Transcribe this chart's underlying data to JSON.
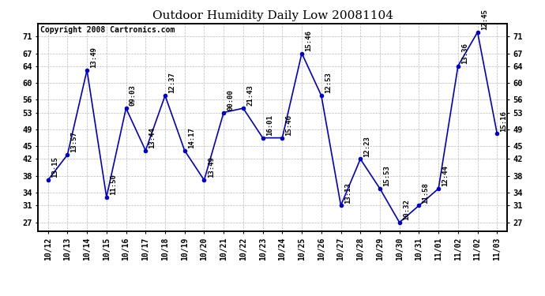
{
  "title": "Outdoor Humidity Daily Low 20081104",
  "copyright": "Copyright 2008 Cartronics.com",
  "x_labels": [
    "10/12",
    "10/13",
    "10/14",
    "10/15",
    "10/16",
    "10/17",
    "10/18",
    "10/19",
    "10/20",
    "10/21",
    "10/22",
    "10/23",
    "10/24",
    "10/25",
    "10/26",
    "10/27",
    "10/28",
    "10/29",
    "10/30",
    "10/31",
    "11/01",
    "11/02",
    "11/02",
    "11/03"
  ],
  "y_values": [
    37,
    43,
    63,
    33,
    54,
    44,
    57,
    44,
    37,
    53,
    54,
    47,
    47,
    67,
    57,
    31,
    42,
    35,
    27,
    31,
    35,
    64,
    72,
    48
  ],
  "point_labels": [
    "13:15",
    "13:57",
    "13:49",
    "11:50",
    "09:03",
    "13:44",
    "12:37",
    "14:17",
    "13:49",
    "00:00",
    "21:43",
    "16:01",
    "15:46",
    "15:46",
    "12:53",
    "13:13",
    "12:23",
    "15:53",
    "10:32",
    "11:58",
    "12:44",
    "13:36",
    "12:45",
    "15:16"
  ],
  "line_color": "#0000cc",
  "marker_color": "#0000cc",
  "bg_color": "#ffffff",
  "plot_bg_color": "#ffffff",
  "grid_color": "#bbbbbb",
  "ylim": [
    25,
    74
  ],
  "yticks": [
    27,
    31,
    34,
    38,
    42,
    45,
    49,
    53,
    56,
    60,
    64,
    67,
    71
  ],
  "title_fontsize": 11,
  "label_fontsize": 6.5,
  "copyright_fontsize": 7
}
